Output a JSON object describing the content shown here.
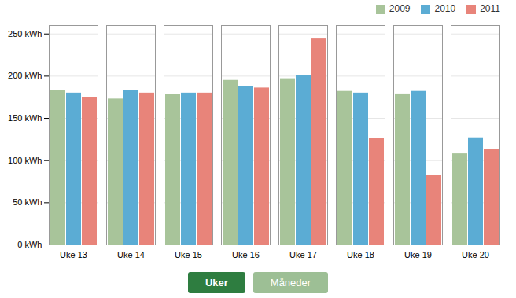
{
  "chart_data": {
    "type": "bar",
    "categories": [
      "Uke 13",
      "Uke 14",
      "Uke 15",
      "Uke 16",
      "Uke 17",
      "Uke 18",
      "Uke 19",
      "Uke 20"
    ],
    "series": [
      {
        "name": "2009",
        "color": "#a8c49a",
        "values": [
          183,
          173,
          178,
          195,
          197,
          182,
          179,
          108
        ]
      },
      {
        "name": "2010",
        "color": "#5bacd4",
        "values": [
          180,
          183,
          180,
          188,
          201,
          180,
          182,
          127
        ]
      },
      {
        "name": "2011",
        "color": "#e8847a",
        "values": [
          175,
          180,
          180,
          186,
          245,
          126,
          82,
          113
        ]
      }
    ],
    "ylim": [
      0,
      260
    ],
    "yticks": [
      {
        "value": 0,
        "label": "0 kWh"
      },
      {
        "value": 50,
        "label": "50 kWh"
      },
      {
        "value": 100,
        "label": "100 kWh"
      },
      {
        "value": 150,
        "label": "150 kWh"
      },
      {
        "value": 200,
        "label": "200 kWh"
      },
      {
        "value": 250,
        "label": "250 kWh"
      }
    ],
    "grid": true,
    "legend": "upper right",
    "annotations": [
      "Uker",
      "Måneder"
    ]
  }
}
